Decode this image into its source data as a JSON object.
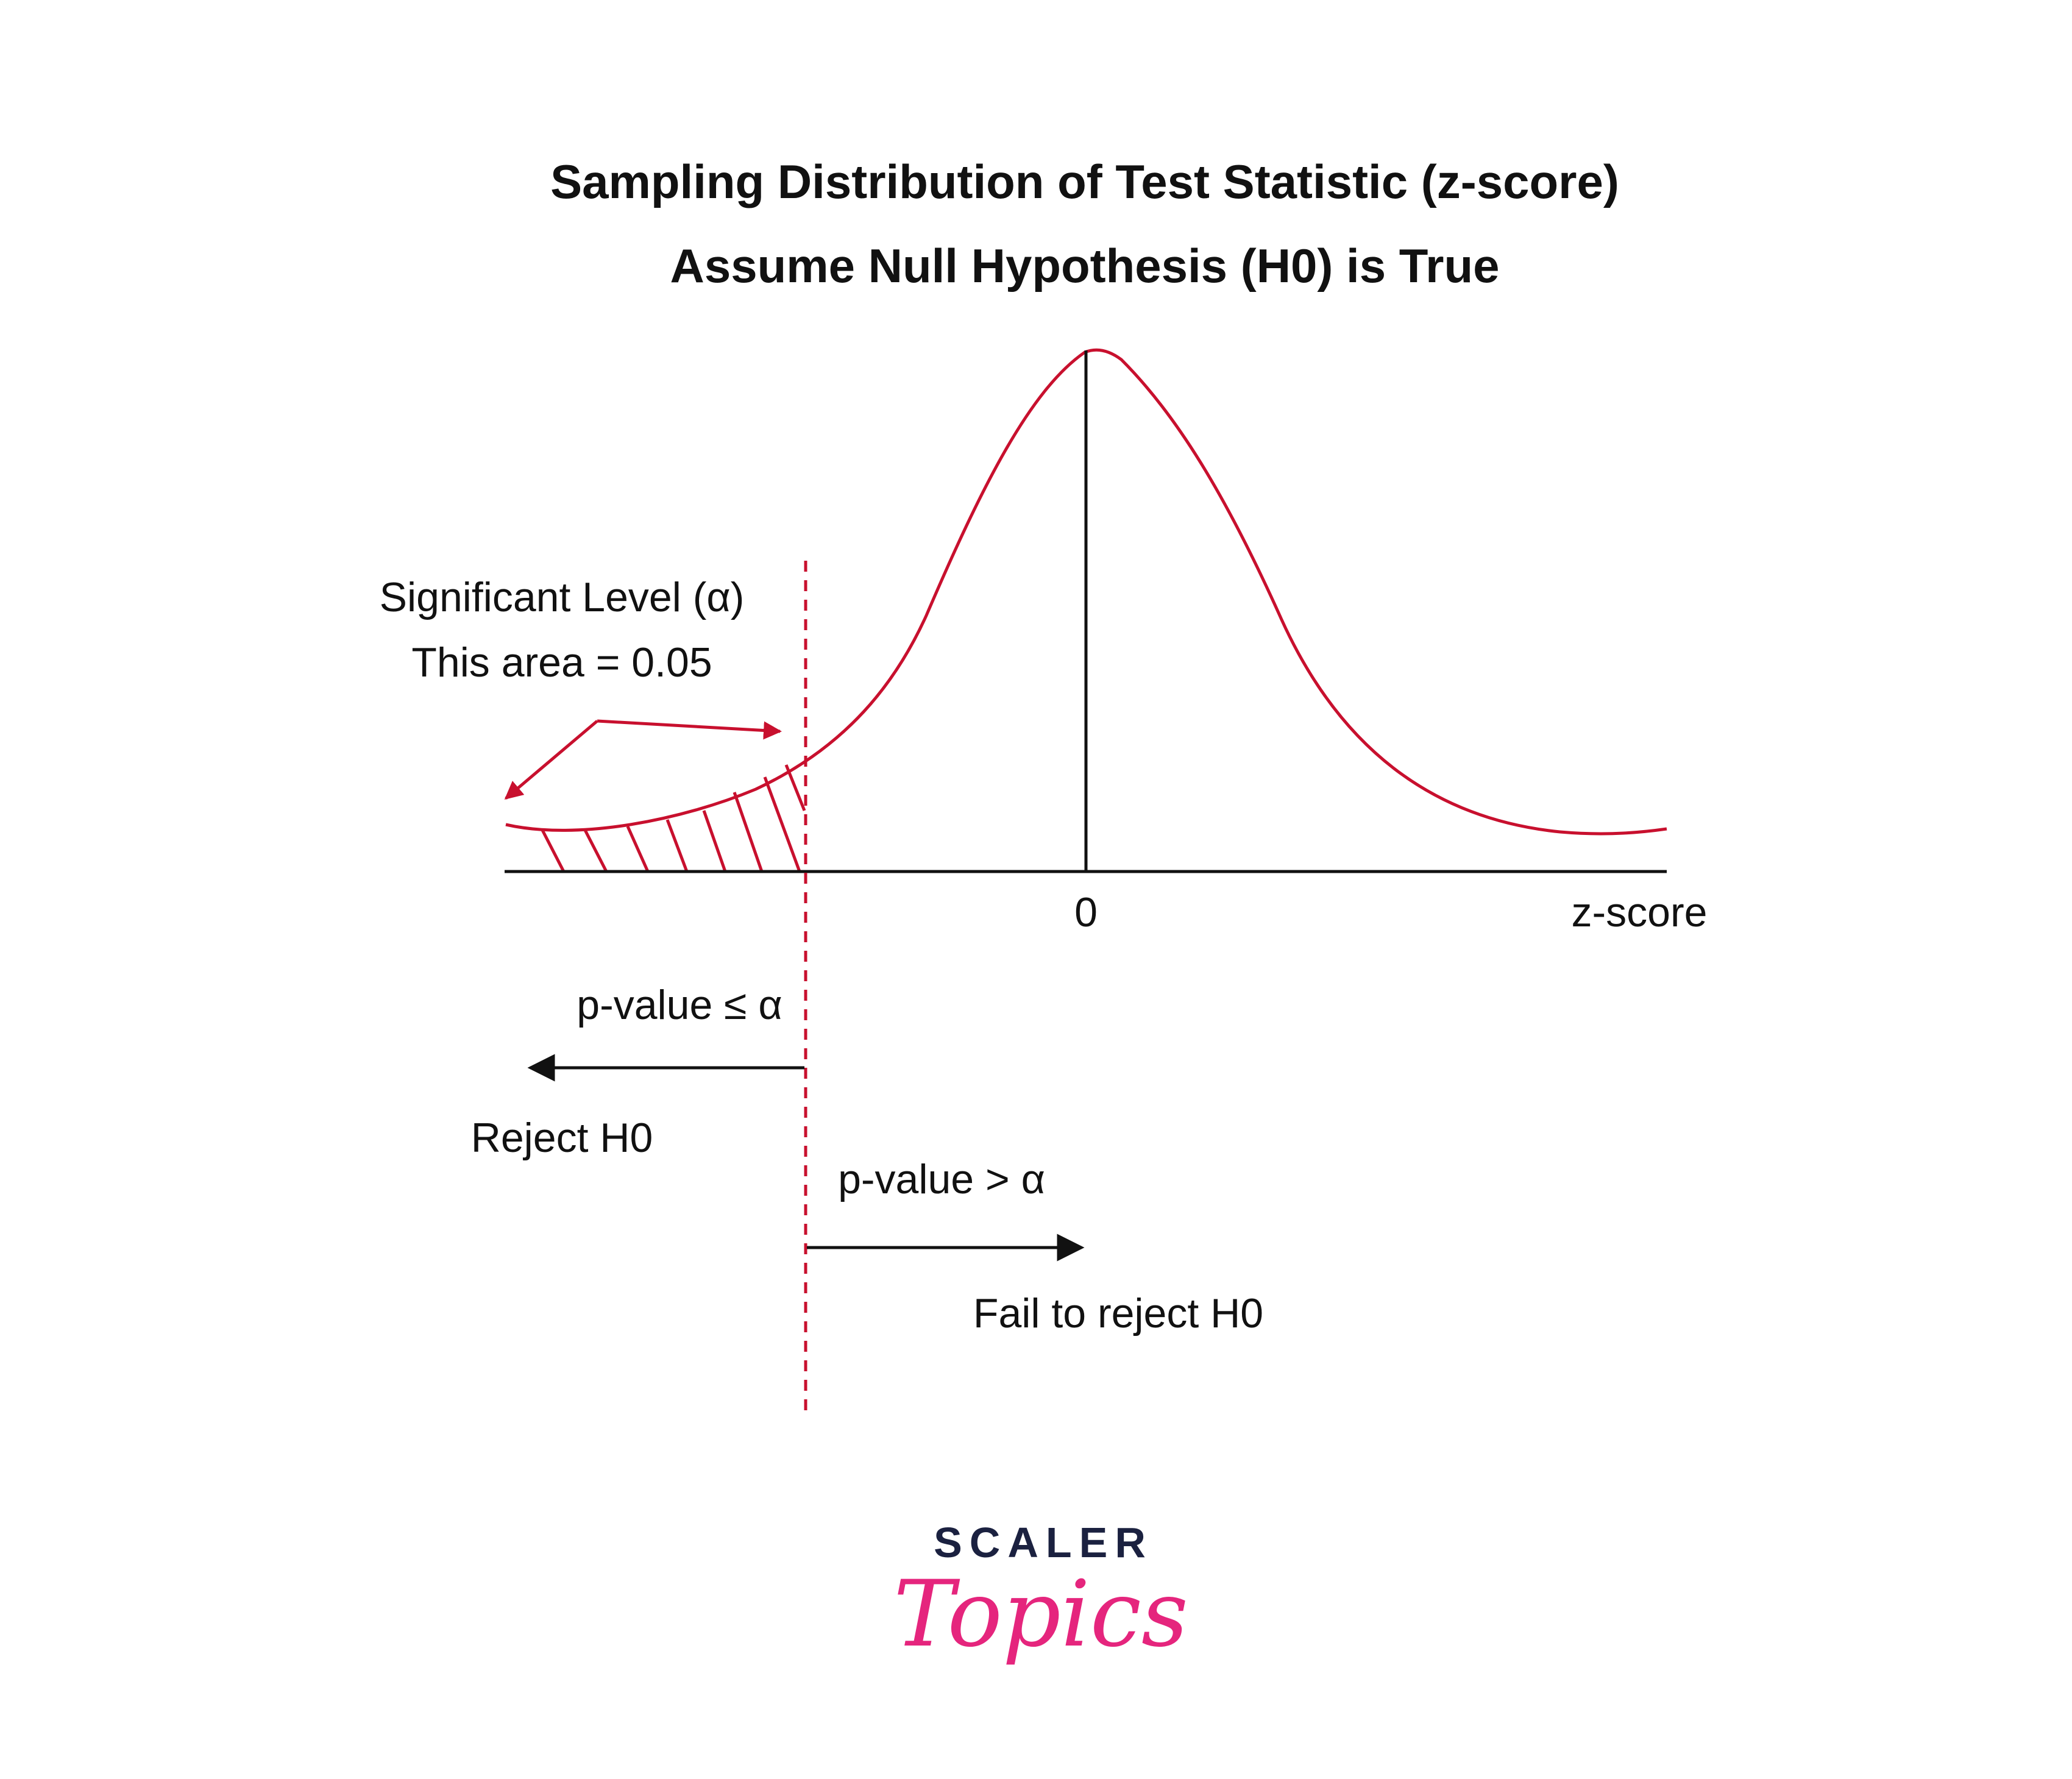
{
  "title": {
    "line1": "Sampling Distribution of Test Statistic (z-score)",
    "line2": "Assume Null Hypothesis (H0) is True"
  },
  "annotations": {
    "significance_label": "Significant Level (α)",
    "area_label": "This area = 0.05",
    "zero_tick": "0",
    "axis_label": "z-score",
    "reject_condition": "p-value ≤ α",
    "reject_label": "Reject H0",
    "fail_condition": "p-value > α",
    "fail_label": "Fail to reject H0"
  },
  "logo": {
    "top": "SCALER",
    "bottom": "Topics"
  },
  "colors": {
    "curve": "#c8102e",
    "axis": "#111111",
    "logo_dark": "#1b2140",
    "logo_pink": "#e5257d"
  }
}
